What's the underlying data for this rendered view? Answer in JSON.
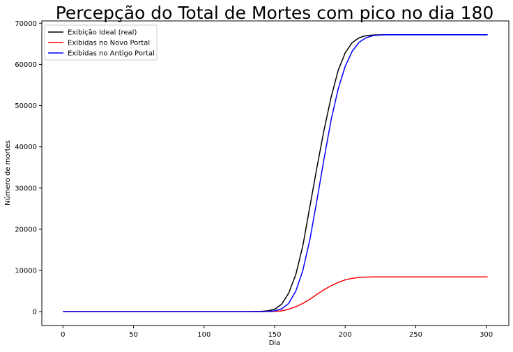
{
  "chart_data": {
    "type": "line",
    "title": "Percepção do Total de Mortes com pico no dia 180",
    "xlabel": "Dia",
    "ylabel": "Número de mortes",
    "xlim": [
      -15,
      316
    ],
    "ylim": [
      -3360,
      70560
    ],
    "xticks": [
      0,
      50,
      100,
      150,
      200,
      250,
      300
    ],
    "yticks": [
      0,
      10000,
      20000,
      30000,
      40000,
      50000,
      60000,
      70000
    ],
    "grid": false,
    "legend_position": "top-left",
    "series": [
      {
        "name": "Exibição Ideal (real)",
        "color": "#000000",
        "x": [
          0,
          100,
          130,
          140,
          145,
          150,
          155,
          160,
          165,
          170,
          175,
          180,
          185,
          190,
          195,
          200,
          205,
          210,
          215,
          220,
          225,
          230,
          250,
          280,
          301
        ],
        "y": [
          0,
          0,
          0,
          50,
          200,
          600,
          1800,
          4500,
          9000,
          16000,
          25500,
          35000,
          44000,
          52000,
          58500,
          62800,
          65300,
          66500,
          67000,
          67150,
          67200,
          67200,
          67200,
          67200,
          67200
        ]
      },
      {
        "name": "Exibidas no Novo Portal",
        "color": "#ff0000",
        "x": [
          0,
          100,
          140,
          150,
          155,
          160,
          165,
          170,
          175,
          180,
          185,
          190,
          195,
          200,
          205,
          210,
          215,
          220,
          230,
          250,
          280,
          301
        ],
        "y": [
          0,
          0,
          0,
          50,
          200,
          600,
          1200,
          2000,
          3000,
          4200,
          5300,
          6300,
          7100,
          7700,
          8100,
          8300,
          8400,
          8450,
          8450,
          8450,
          8450,
          8450
        ]
      },
      {
        "name": "Exibidas no Antigo Portal",
        "color": "#0000ff",
        "x": [
          0,
          100,
          135,
          145,
          150,
          155,
          160,
          165,
          170,
          175,
          180,
          185,
          190,
          195,
          200,
          205,
          210,
          215,
          220,
          225,
          230,
          250,
          280,
          301
        ],
        "y": [
          0,
          0,
          0,
          50,
          200,
          700,
          2000,
          5000,
          10000,
          17500,
          27000,
          37000,
          46500,
          54000,
          59500,
          63200,
          65400,
          66500,
          67000,
          67150,
          67200,
          67200,
          67200,
          67200
        ]
      }
    ]
  }
}
